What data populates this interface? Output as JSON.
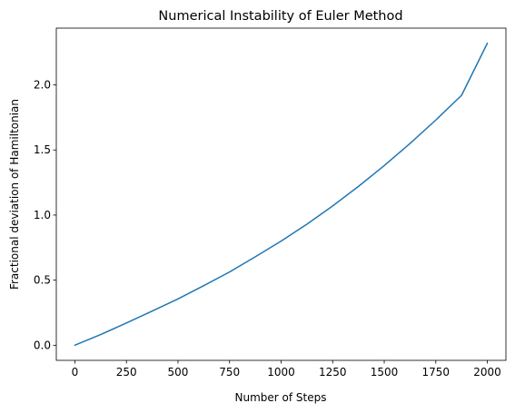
{
  "chart_data": {
    "type": "line",
    "title": "Numerical Instability of Euler Method",
    "xlabel": "Number of Steps",
    "ylabel": "Fractional deviation of Hamiltonian",
    "xlim": [
      -90,
      2090
    ],
    "ylim": [
      -0.116,
      2.436
    ],
    "xticks": [
      0,
      250,
      500,
      750,
      1000,
      1250,
      1500,
      1750,
      2000
    ],
    "xtick_labels": [
      "0",
      "250",
      "500",
      "750",
      "1000",
      "1250",
      "1500",
      "1750",
      "2000"
    ],
    "yticks": [
      0.0,
      0.5,
      1.0,
      1.5,
      2.0
    ],
    "ytick_labels": [
      "0.0",
      "0.5",
      "1.0",
      "1.5",
      "2.0"
    ],
    "grid": false,
    "legend": "none",
    "series": [
      {
        "color": "#1f77b4",
        "x": [
          0,
          125,
          250,
          375,
          500,
          625,
          750,
          875,
          1000,
          1125,
          1250,
          1375,
          1500,
          1625,
          1750,
          1875,
          2000
        ],
        "y": [
          0.0,
          0.082,
          0.171,
          0.263,
          0.356,
          0.458,
          0.563,
          0.68,
          0.8,
          0.93,
          1.07,
          1.22,
          1.38,
          1.55,
          1.73,
          1.92,
          2.32
        ]
      }
    ]
  }
}
